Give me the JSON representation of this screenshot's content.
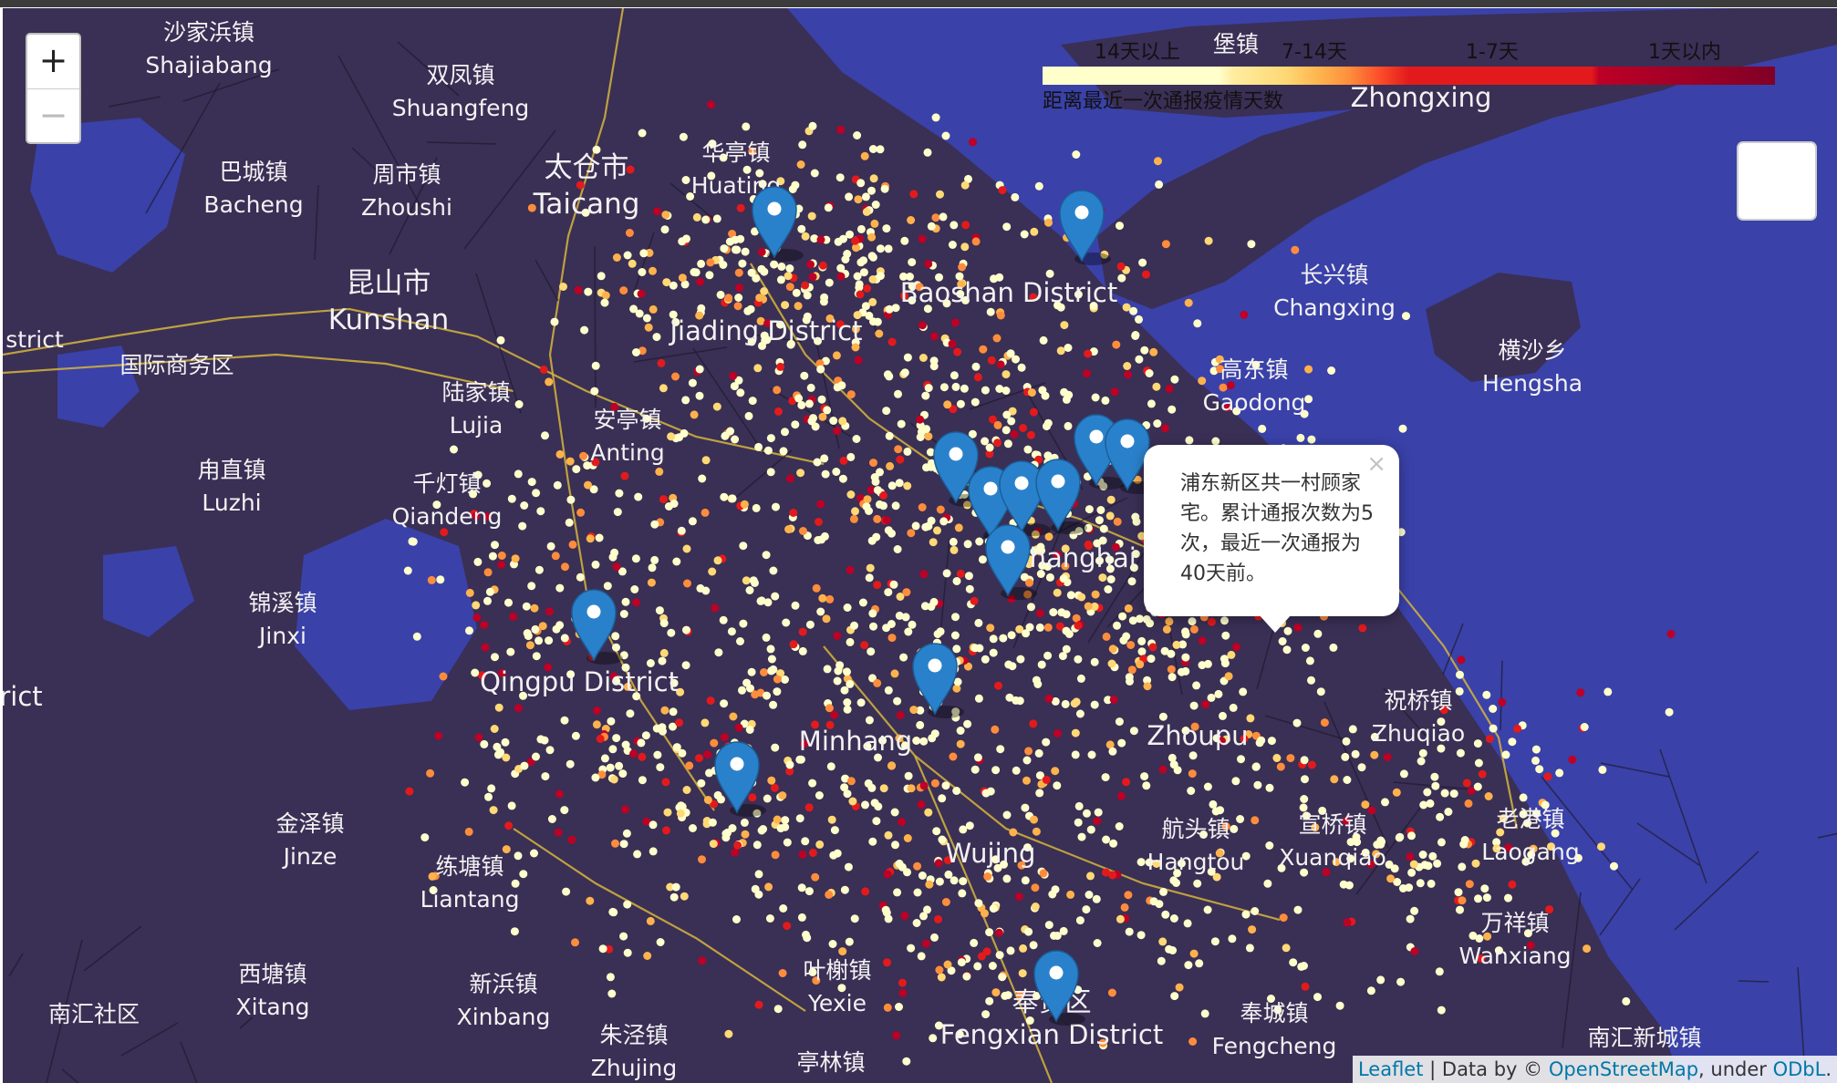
{
  "legend": {
    "ticks": [
      "14天以上",
      "7-14天",
      "1-7天",
      "1天以内"
    ],
    "caption": "距离最近一次通报疫情天数",
    "colors": [
      "#ffffcc",
      "#fed976",
      "#fd8d3c",
      "#e31a1c",
      "#800026"
    ]
  },
  "zoom": {
    "in_label": "+",
    "out_label": "−"
  },
  "popup": {
    "text": "浦东新区共一村顾家宅。累计通报次数为5次，最近一次通报为40天前。",
    "close_label": "×"
  },
  "attribution": {
    "leaflet": "Leaflet",
    "sep": " | Data by © ",
    "osm": "OpenStreetMap",
    "under": ", under ",
    "odbl": "ODbL",
    "end": "."
  },
  "labels": [
    {
      "zh": "沙家浜镇",
      "en": "Shajiabang"
    },
    {
      "zh": "双凤镇",
      "en": "Shuangfeng"
    },
    {
      "zh": "巴城镇",
      "en": "Bacheng"
    },
    {
      "zh": "周市镇",
      "en": "Zhoushi"
    },
    {
      "zh": "太仓市",
      "en": "Taicang"
    },
    {
      "zh": "华亭镇",
      "en": "Huating"
    },
    {
      "zh": "昆山市",
      "en": "Kunshan"
    },
    {
      "zh": "",
      "en": "strict"
    },
    {
      "zh": "国际商务区",
      "en": ""
    },
    {
      "zh": "陆家镇",
      "en": "Lujia"
    },
    {
      "zh": "安亭镇",
      "en": "Anting"
    },
    {
      "zh": "甪直镇",
      "en": "Luzhi"
    },
    {
      "zh": "千灯镇",
      "en": "Qiandeng"
    },
    {
      "zh": "锦溪镇",
      "en": "Jinxi"
    },
    {
      "zh": "",
      "en": "Qingpu District"
    },
    {
      "zh": "金泽镇",
      "en": "Jinze"
    },
    {
      "zh": "练塘镇",
      "en": "Liantang"
    },
    {
      "zh": "西塘镇",
      "en": "Xitang"
    },
    {
      "zh": "新浜镇",
      "en": "Xinbang"
    },
    {
      "zh": "南汇社区",
      "en": ""
    },
    {
      "zh": "朱泾镇",
      "en": "Zhujing"
    },
    {
      "zh": "亭林镇",
      "en": ""
    },
    {
      "zh": "叶榭镇",
      "en": "Yexie"
    },
    {
      "zh": "奉贤区",
      "en": "Fengxian District"
    },
    {
      "zh": "奉城镇",
      "en": "Fengcheng"
    },
    {
      "zh": "南汇新城镇",
      "en": ""
    },
    {
      "zh": "万祥镇",
      "en": "Wanxiang"
    },
    {
      "zh": "老港镇",
      "en": "Laogang"
    },
    {
      "zh": "宣桥镇",
      "en": "Xuanqiao"
    },
    {
      "zh": "航头镇",
      "en": "Hangtou"
    },
    {
      "zh": "祝桥镇",
      "en": "Zhuqiao"
    },
    {
      "zh": "横沙乡",
      "en": "Hengsha"
    },
    {
      "zh": "长兴镇",
      "en": "Changxing"
    },
    {
      "zh": "",
      "en": "Jiading District"
    },
    {
      "zh": "",
      "en": "Baoshan District"
    },
    {
      "zh": "堡镇",
      "en": ""
    },
    {
      "zh": "",
      "en": "Zhongxing"
    },
    {
      "zh": "",
      "en": "Wujing"
    },
    {
      "zh": "",
      "en": "Minhang"
    },
    {
      "zh": "",
      "en": "Zhoupu"
    },
    {
      "zh": "高东镇",
      "en": "Gaodong"
    },
    {
      "zh": "",
      "en": "rict"
    },
    {
      "zh": "",
      "en": "Shanghai"
    }
  ]
}
